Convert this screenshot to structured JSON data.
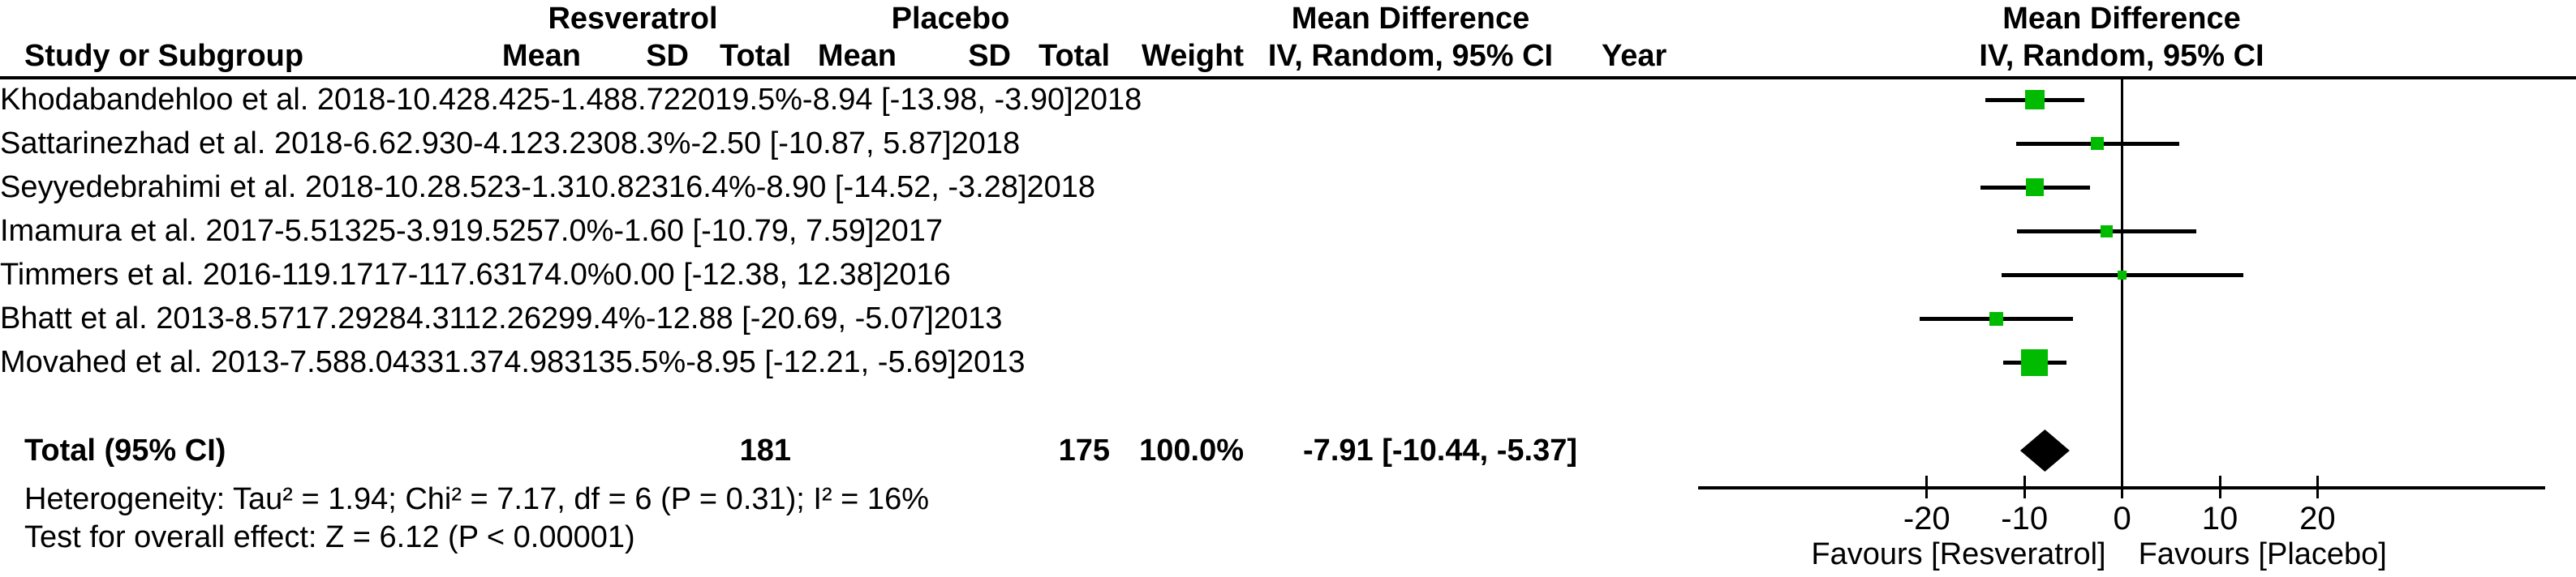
{
  "header": {
    "study": "Study or Subgroup",
    "mean": "Mean",
    "sd": "SD",
    "total": "Total",
    "weight": "Weight",
    "ci_method": "IV, Random, 95% CI",
    "effect": "Mean Difference",
    "year": "Year"
  },
  "chart_data": {
    "type": "forest",
    "effect_measure": "Mean Difference",
    "method": "IV, Random, 95% CI",
    "groups": {
      "experimental": "Resveratrol",
      "control": "Placebo"
    },
    "studies": [
      {
        "name": "Khodabandehloo et al. 2018",
        "mean_e": "-10.42",
        "sd_e": "8.4",
        "n_e": "25",
        "mean_c": "-1.48",
        "sd_c": "8.72",
        "n_c": "20",
        "weight": "19.5%",
        "weight_pct": 19.5,
        "ci_text": "-8.94 [-13.98, -3.90]",
        "md": -8.94,
        "lo": -13.98,
        "hi": -3.9,
        "year": "2018"
      },
      {
        "name": "Sattarinezhad et al. 2018",
        "mean_e": "-6.6",
        "sd_e": "2.9",
        "n_e": "30",
        "mean_c": "-4.1",
        "sd_c": "23.2",
        "n_c": "30",
        "weight": "8.3%",
        "weight_pct": 8.3,
        "ci_text": "-2.50 [-10.87, 5.87]",
        "md": -2.5,
        "lo": -10.87,
        "hi": 5.87,
        "year": "2018"
      },
      {
        "name": "Seyyedebrahimi et al. 2018",
        "mean_e": "-10.2",
        "sd_e": "8.5",
        "n_e": "23",
        "mean_c": "-1.3",
        "sd_c": "10.8",
        "n_c": "23",
        "weight": "16.4%",
        "weight_pct": 16.4,
        "ci_text": "-8.90 [-14.52, -3.28]",
        "md": -8.9,
        "lo": -14.52,
        "hi": -3.28,
        "year": "2018"
      },
      {
        "name": "Imamura et al. 2017",
        "mean_e": "-5.5",
        "sd_e": "13",
        "n_e": "25",
        "mean_c": "-3.9",
        "sd_c": "19.5",
        "n_c": "25",
        "weight": "7.0%",
        "weight_pct": 7.0,
        "ci_text": "-1.60 [-10.79, 7.59]",
        "md": -1.6,
        "lo": -10.79,
        "hi": 7.59,
        "year": "2017"
      },
      {
        "name": "Timmers et al. 2016",
        "mean_e": "-1",
        "sd_e": "19.17",
        "n_e": "17",
        "mean_c": "-1",
        "sd_c": "17.63",
        "n_c": "17",
        "weight": "4.0%",
        "weight_pct": 4.0,
        "ci_text": "0.00 [-12.38, 12.38]",
        "md": 0.0,
        "lo": -12.38,
        "hi": 12.38,
        "year": "2016"
      },
      {
        "name": "Bhatt et al. 2013",
        "mean_e": "-8.57",
        "sd_e": "17.29",
        "n_e": "28",
        "mean_c": "4.31",
        "sd_c": "12.26",
        "n_c": "29",
        "weight": "9.4%",
        "weight_pct": 9.4,
        "ci_text": "-12.88 [-20.69, -5.07]",
        "md": -12.88,
        "lo": -20.69,
        "hi": -5.07,
        "year": "2013"
      },
      {
        "name": "Movahed et al. 2013",
        "mean_e": "-7.58",
        "sd_e": "8.04",
        "n_e": "33",
        "mean_c": "1.37",
        "sd_c": "4.98",
        "n_c": "31",
        "weight": "35.5%",
        "weight_pct": 35.5,
        "ci_text": "-8.95 [-12.21, -5.69]",
        "md": -8.95,
        "lo": -12.21,
        "hi": -5.69,
        "year": "2013"
      }
    ],
    "total": {
      "label": "Total (95% CI)",
      "n_e": "181",
      "n_c": "175",
      "weight": "100.0%",
      "ci_text": "-7.91 [-10.44, -5.37]",
      "md": -7.91,
      "lo": -10.44,
      "hi": -5.37
    },
    "heterogeneity": "Heterogeneity: Tau² = 1.94; Chi² = 7.17, df = 6 (P = 0.31); I² = 16%",
    "overall_effect": "Test for overall effect: Z = 6.12 (P < 0.00001)",
    "axis": {
      "ticks": [
        -20,
        -10,
        0,
        10,
        20
      ],
      "x_min": -43.4,
      "x_max": 43.3,
      "grid": false
    },
    "favours_left": "Favours [Resveratrol]",
    "favours_right": "Favours [Placebo]",
    "colors": {
      "square": "#00BB00",
      "ci_line": "#000000",
      "diamond": "#000000",
      "axis": "#000000"
    }
  }
}
